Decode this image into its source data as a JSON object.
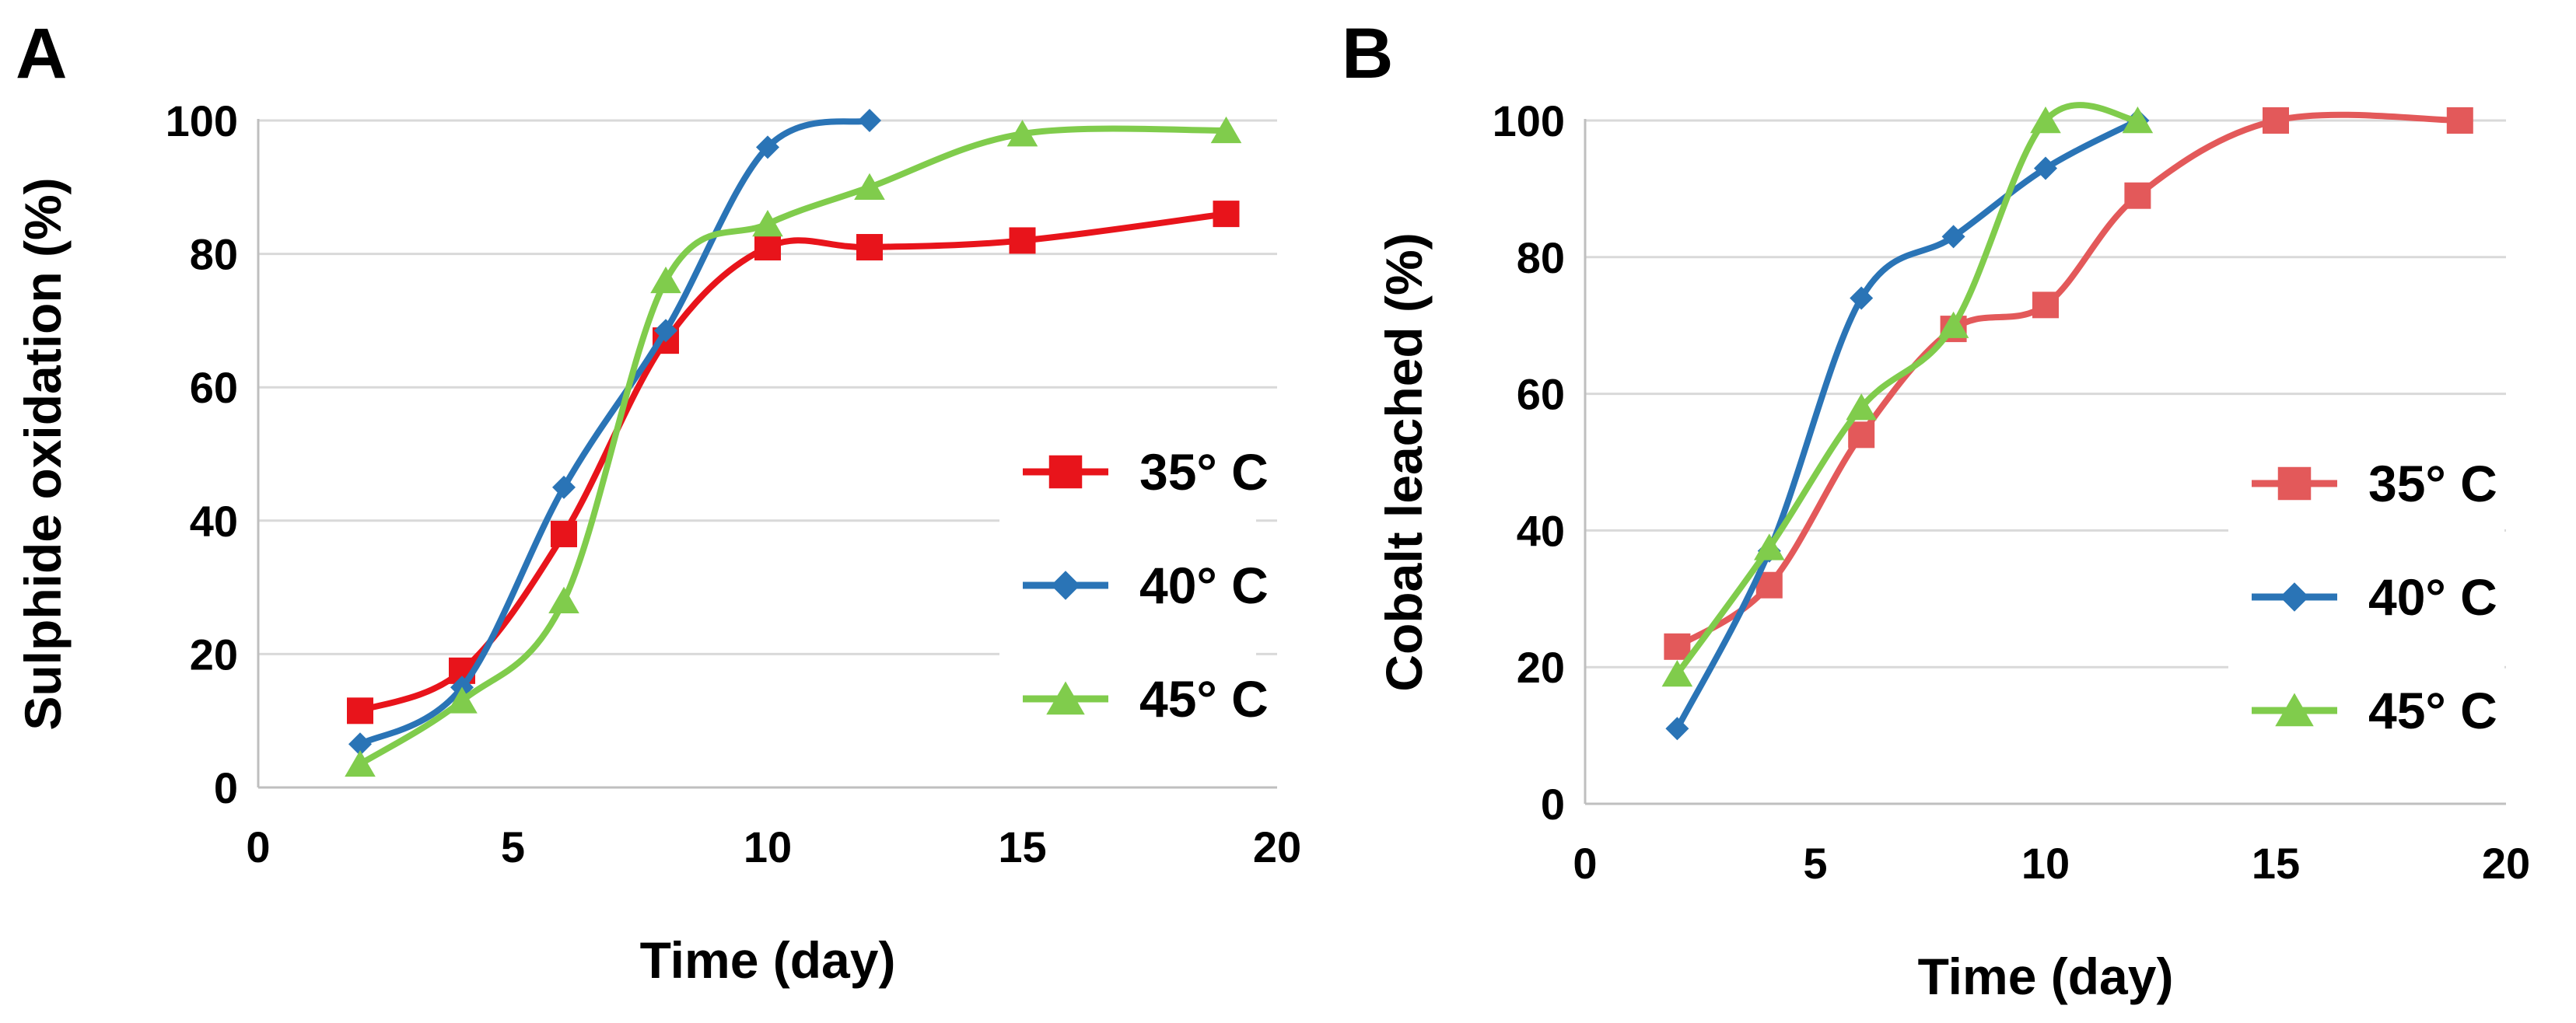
{
  "chart_data": [
    {
      "panel_label": "A",
      "type": "line",
      "title": "",
      "xlabel": "Time (day)",
      "ylabel": "Sulphide oxidation (%)",
      "xlim": [
        0,
        20
      ],
      "ylim": [
        0,
        100
      ],
      "xticks": [
        "0",
        "5",
        "10",
        "15",
        "20"
      ],
      "yticks": [
        "0",
        "20",
        "40",
        "60",
        "80",
        "100"
      ],
      "grid": "horizontal",
      "legend_position": "right",
      "series": [
        {
          "name": "35° C",
          "color": "#e8141b",
          "marker": "square",
          "x": [
            2,
            4,
            6,
            8,
            10,
            12,
            15,
            19
          ],
          "y": [
            11.5,
            17.5,
            38,
            67,
            81,
            81,
            82,
            86
          ]
        },
        {
          "name": "40° C",
          "color": "#2a74b6",
          "marker": "diamond",
          "x": [
            2,
            4,
            6,
            8,
            10,
            12
          ],
          "y": [
            6.5,
            15,
            45,
            68.5,
            96,
            100
          ]
        },
        {
          "name": "45° C",
          "color": "#80cc4c",
          "marker": "triangle",
          "x": [
            2,
            4,
            6,
            8,
            10,
            12,
            15,
            19
          ],
          "y": [
            3.5,
            13,
            28,
            76,
            84.5,
            90,
            98,
            98.5
          ]
        }
      ]
    },
    {
      "panel_label": "B",
      "type": "line",
      "title": "",
      "xlabel": "Time (day)",
      "ylabel": "Cobalt leached (%)",
      "xlim": [
        0,
        20
      ],
      "ylim": [
        0,
        100
      ],
      "xticks": [
        "0",
        "5",
        "10",
        "15",
        "20"
      ],
      "yticks": [
        "0",
        "20",
        "40",
        "60",
        "80",
        "100"
      ],
      "grid": "horizontal",
      "legend_position": "right",
      "series": [
        {
          "name": "35° C",
          "color": "#e3595a",
          "marker": "square",
          "x": [
            2,
            4,
            6,
            8,
            10,
            12,
            15,
            19
          ],
          "y": [
            23,
            32,
            54,
            69.5,
            73,
            89,
            100,
            100
          ]
        },
        {
          "name": "40° C",
          "color": "#2a74b6",
          "marker": "diamond",
          "x": [
            2,
            4,
            6,
            8,
            10,
            12
          ],
          "y": [
            11,
            37,
            74,
            83,
            93,
            100
          ]
        },
        {
          "name": "45° C",
          "color": "#80cc4c",
          "marker": "triangle",
          "x": [
            2,
            4,
            6,
            8,
            10,
            12
          ],
          "y": [
            19,
            37.5,
            58,
            70,
            100,
            100
          ]
        }
      ]
    }
  ]
}
